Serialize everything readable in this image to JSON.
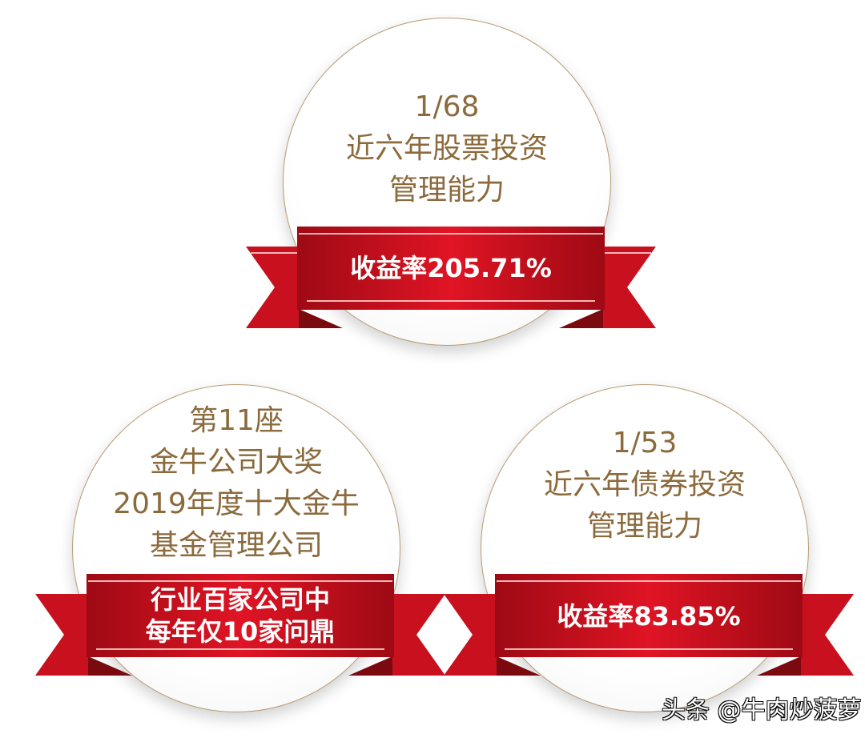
{
  "colors": {
    "ribbon": "#c8101e",
    "text": "#8b6a3c",
    "outline": "#b89a72"
  },
  "badges": [
    {
      "lines": [
        "1/68",
        "近六年股票投资",
        "管理能力"
      ],
      "ribbon": [
        "收益率205.71%"
      ]
    },
    {
      "lines": [
        "第11座",
        "金牛公司大奖",
        "2019年度十大金牛",
        "基金管理公司"
      ],
      "ribbon": [
        "行业百家公司中",
        "每年仅10家问鼎"
      ]
    },
    {
      "lines": [
        "1/53",
        "近六年债券投资",
        "管理能力"
      ],
      "ribbon": [
        "收益率83.85%"
      ]
    }
  ],
  "watermark": "头条 @牛肉炒菠萝"
}
